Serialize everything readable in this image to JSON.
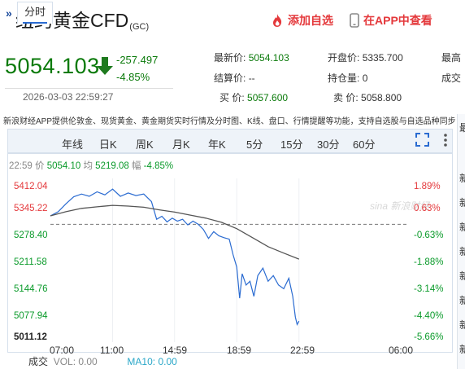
{
  "header": {
    "title": "纽约黄金CFD",
    "title_suffix": "(GC)",
    "add_watchlist_label": "添加自选",
    "view_in_app_label": "在APP中查看"
  },
  "price": {
    "last": "5054.103",
    "change": "-257.497",
    "change_pct": "-4.85%",
    "timestamp": "2026-03-03 22:59:27"
  },
  "quote_table": {
    "latest_label": "最新价:",
    "latest_value": "5054.103",
    "open_label": "开盘价:",
    "open_value": "5335.700",
    "high_label_partial": "最高",
    "settle_label": "结算价:",
    "settle_value": "--",
    "oi_label": "持仓量:",
    "oi_value": "0",
    "volume_label_partial": "成交",
    "bid_label": "买  价:",
    "bid_value": "5057.600",
    "ask_label": "卖  价:",
    "ask_value": "5058.800"
  },
  "notice": "新浪财经APP提供伦敦金、现货黄金、黄金期货实时行情及分时图、K线、盘口、行情提醒等功能，支持自选股与自选品种同步",
  "tabs": [
    "分时",
    "年线",
    "日K",
    "周K",
    "月K",
    "年K",
    "5分",
    "15分",
    "30分",
    "60分"
  ],
  "active_tab": "分时",
  "chart_info": {
    "time": "22:59",
    "price_label": "价",
    "price_value": "5054.10",
    "avg_label": "均",
    "avg_value": "5219.08",
    "amp_label": "幅",
    "amp_value": "-4.85%"
  },
  "watermark": "sina 新浪财经",
  "volume_bar": {
    "label": "成交",
    "vol_text": "VOL: 0.00",
    "ma10_label": "MA10:",
    "ma10_value": "0.00"
  },
  "right_edge_chars": [
    "最",
    "新",
    "新",
    "新",
    "新",
    "新",
    "新",
    "新",
    "新",
    "新"
  ],
  "colors": {
    "up": "#e4393c",
    "down": "#0a9a2a",
    "price_line": "#2a6bd1",
    "avg_line": "#555555"
  },
  "chart_data": {
    "type": "line",
    "y_left_ticks": [
      "5412.04",
      "5345.22",
      "5278.40",
      "5211.58",
      "5144.76",
      "5077.94",
      "5011.12"
    ],
    "y_right_ticks": [
      "1.89%",
      "0.63%",
      "-0.63%",
      "-1.88%",
      "-3.14%",
      "-4.40%",
      "-5.66%"
    ],
    "reference_price": 5311.6,
    "x_ticks": [
      "07:00",
      "11:00",
      "14:59",
      "18:59",
      "22:59",
      "",
      "06:00"
    ],
    "ylim": [
      5011.12,
      5412.04
    ],
    "series": [
      {
        "role": "price",
        "points": [
          [
            "07:00",
            5334
          ],
          [
            "07:30",
            5345
          ],
          [
            "08:00",
            5366
          ],
          [
            "08:30",
            5385
          ],
          [
            "09:00",
            5392
          ],
          [
            "09:30",
            5386
          ],
          [
            "10:00",
            5398
          ],
          [
            "10:30",
            5390
          ],
          [
            "11:00",
            5405
          ],
          [
            "11:30",
            5386
          ],
          [
            "12:00",
            5395
          ],
          [
            "12:30",
            5388
          ],
          [
            "13:00",
            5392
          ],
          [
            "13:30",
            5372
          ],
          [
            "13:50",
            5325
          ],
          [
            "14:10",
            5333
          ],
          [
            "14:30",
            5318
          ],
          [
            "14:50",
            5328
          ],
          [
            "15:10",
            5320
          ],
          [
            "15:30",
            5325
          ],
          [
            "15:50",
            5310
          ],
          [
            "16:10",
            5320
          ],
          [
            "16:30",
            5312
          ],
          [
            "16:50",
            5298
          ],
          [
            "17:10",
            5274
          ],
          [
            "17:30",
            5292
          ],
          [
            "17:50",
            5281
          ],
          [
            "18:10",
            5276
          ],
          [
            "18:30",
            5272
          ],
          [
            "18:45",
            5230
          ],
          [
            "18:59",
            5198
          ],
          [
            "19:10",
            5115
          ],
          [
            "19:20",
            5180
          ],
          [
            "19:35",
            5150
          ],
          [
            "19:50",
            5160
          ],
          [
            "20:05",
            5120
          ],
          [
            "20:20",
            5175
          ],
          [
            "20:40",
            5195
          ],
          [
            "21:00",
            5160
          ],
          [
            "21:20",
            5175
          ],
          [
            "21:40",
            5150
          ],
          [
            "22:00",
            5140
          ],
          [
            "22:20",
            5168
          ],
          [
            "22:35",
            5120
          ],
          [
            "22:45",
            5065
          ],
          [
            "22:52",
            5045
          ],
          [
            "22:59",
            5054
          ]
        ]
      },
      {
        "role": "average",
        "points": [
          [
            "07:00",
            5334
          ],
          [
            "08:00",
            5345
          ],
          [
            "09:00",
            5354
          ],
          [
            "10:00",
            5358
          ],
          [
            "11:00",
            5362
          ],
          [
            "12:00",
            5360
          ],
          [
            "13:00",
            5357
          ],
          [
            "14:00",
            5350
          ],
          [
            "15:00",
            5344
          ],
          [
            "16:00",
            5336
          ],
          [
            "17:00",
            5328
          ],
          [
            "18:00",
            5317
          ],
          [
            "18:59",
            5300
          ],
          [
            "20:00",
            5276
          ],
          [
            "21:00",
            5252
          ],
          [
            "22:00",
            5235
          ],
          [
            "22:59",
            5219
          ]
        ]
      }
    ]
  }
}
